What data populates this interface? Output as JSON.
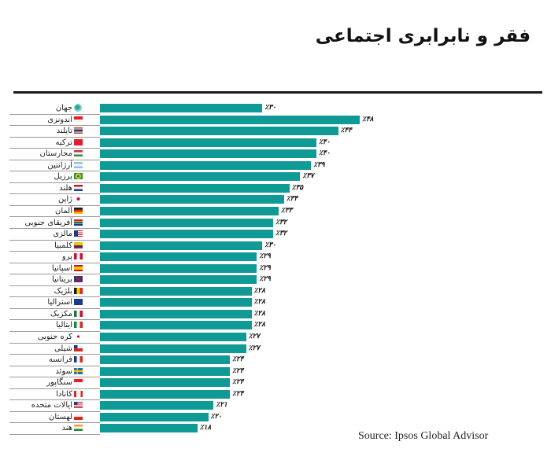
{
  "title": "فقر و نابرابری اجتماعی",
  "source": "Source: Ipsos Global Advisor",
  "colors": {
    "bar": "#0f9a95",
    "rule": "#1a1a1a",
    "separator": "#9a9a9a"
  },
  "chart_data": {
    "type": "bar",
    "orientation": "horizontal",
    "title": "فقر و نابرابری اجتماعی",
    "xlabel": "",
    "ylabel": "",
    "unit": "%",
    "xlim": [
      0,
      50
    ],
    "grid": false,
    "legend": null,
    "source": "Source: Ipsos Global Advisor",
    "categories": [
      "جهان",
      "اندونزی",
      "تایلند",
      "ترکیه",
      "مجارستان",
      "آرژانتین",
      "برزیل",
      "هلند",
      "ژاپن",
      "آلمان",
      "آفریقای جنوبی",
      "مالزی",
      "کلمبیا",
      "پرو",
      "اسپانیا",
      "بریتانیا",
      "بلژیک",
      "استرالیا",
      "مکزیک",
      "ایتالیا",
      "کره جنوبی",
      "شیلی",
      "فرانسه",
      "سوئد",
      "سنگاپور",
      "کانادا",
      "ایالات متحده",
      "لهستان",
      "هند"
    ],
    "values": [
      30,
      48,
      44,
      40,
      40,
      39,
      37,
      35,
      34,
      33,
      32,
      32,
      30,
      29,
      29,
      29,
      28,
      28,
      28,
      28,
      27,
      27,
      24,
      24,
      24,
      24,
      21,
      20,
      18
    ],
    "value_labels": [
      "٪۳۰",
      "٪۴۸",
      "٪۴۴",
      "٪۴۰",
      "٪۴۰",
      "٪۳۹",
      "٪۳۷",
      "٪۳۵",
      "٪۳۴",
      "٪۳۳",
      "٪۳۲",
      "٪۳۲",
      "٪۳۰",
      "٪۲۹",
      "٪۲۹",
      "٪۲۹",
      "٪۲۸",
      "٪۲۸",
      "٪۲۸",
      "٪۲۸",
      "٪۲۷",
      "٪۲۷",
      "٪۲۴",
      "٪۲۴",
      "٪۲۴",
      "٪۲۴",
      "٪۲۱",
      "٪۲۰",
      "٪۱۸"
    ]
  },
  "rows": [
    {
      "label": "جهان",
      "value": 30,
      "value_label": "٪۳۰",
      "icon": "globe-icon",
      "flag": "globe"
    },
    {
      "label": "اندونزی",
      "value": 48,
      "value_label": "٪۴۸",
      "icon": "flag-indonesia-icon",
      "flag": "id"
    },
    {
      "label": "تایلند",
      "value": 44,
      "value_label": "٪۴۴",
      "icon": "flag-thailand-icon",
      "flag": "th"
    },
    {
      "label": "ترکیه",
      "value": 40,
      "value_label": "٪۴۰",
      "icon": "flag-turkey-icon",
      "flag": "tr"
    },
    {
      "label": "مجارستان",
      "value": 40,
      "value_label": "٪۴۰",
      "icon": "flag-hungary-icon",
      "flag": "hu"
    },
    {
      "label": "آرژانتین",
      "value": 39,
      "value_label": "٪۳۹",
      "icon": "flag-argentina-icon",
      "flag": "ar"
    },
    {
      "label": "برزیل",
      "value": 37,
      "value_label": "٪۳۷",
      "icon": "flag-brazil-icon",
      "flag": "br"
    },
    {
      "label": "هلند",
      "value": 35,
      "value_label": "٪۳۵",
      "icon": "flag-netherlands-icon",
      "flag": "nl"
    },
    {
      "label": "ژاپن",
      "value": 34,
      "value_label": "٪۳۴",
      "icon": "flag-japan-icon",
      "flag": "jp"
    },
    {
      "label": "آلمان",
      "value": 33,
      "value_label": "٪۳۳",
      "icon": "flag-germany-icon",
      "flag": "de"
    },
    {
      "label": "آفریقای جنوبی",
      "value": 32,
      "value_label": "٪۳۲",
      "icon": "flag-south-africa-icon",
      "flag": "za"
    },
    {
      "label": "مالزی",
      "value": 32,
      "value_label": "٪۳۲",
      "icon": "flag-malaysia-icon",
      "flag": "my"
    },
    {
      "label": "کلمبیا",
      "value": 30,
      "value_label": "٪۳۰",
      "icon": "flag-colombia-icon",
      "flag": "co"
    },
    {
      "label": "پرو",
      "value": 29,
      "value_label": "٪۲۹",
      "icon": "flag-peru-icon",
      "flag": "pe"
    },
    {
      "label": "اسپانیا",
      "value": 29,
      "value_label": "٪۲۹",
      "icon": "flag-spain-icon",
      "flag": "es"
    },
    {
      "label": "بریتانیا",
      "value": 29,
      "value_label": "٪۲۹",
      "icon": "flag-uk-icon",
      "flag": "gb"
    },
    {
      "label": "بلژیک",
      "value": 28,
      "value_label": "٪۲۸",
      "icon": "flag-belgium-icon",
      "flag": "be"
    },
    {
      "label": "استرالیا",
      "value": 28,
      "value_label": "٪۲۸",
      "icon": "flag-australia-icon",
      "flag": "au"
    },
    {
      "label": "مکزیک",
      "value": 28,
      "value_label": "٪۲۸",
      "icon": "flag-mexico-icon",
      "flag": "mx"
    },
    {
      "label": "ایتالیا",
      "value": 28,
      "value_label": "٪۲۸",
      "icon": "flag-italy-icon",
      "flag": "it"
    },
    {
      "label": "کره جنوبی",
      "value": 27,
      "value_label": "٪۲۷",
      "icon": "flag-south-korea-icon",
      "flag": "kr"
    },
    {
      "label": "شیلی",
      "value": 27,
      "value_label": "٪۲۷",
      "icon": "flag-chile-icon",
      "flag": "cl"
    },
    {
      "label": "فرانسه",
      "value": 24,
      "value_label": "٪۲۴",
      "icon": "flag-france-icon",
      "flag": "fr"
    },
    {
      "label": "سوئد",
      "value": 24,
      "value_label": "٪۲۴",
      "icon": "flag-sweden-icon",
      "flag": "se"
    },
    {
      "label": "سنگاپور",
      "value": 24,
      "value_label": "٪۲۴",
      "icon": "flag-singapore-icon",
      "flag": "sg"
    },
    {
      "label": "کانادا",
      "value": 24,
      "value_label": "٪۲۴",
      "icon": "flag-canada-icon",
      "flag": "ca"
    },
    {
      "label": "ایالات متحده",
      "value": 21,
      "value_label": "٪۲۱",
      "icon": "flag-usa-icon",
      "flag": "us"
    },
    {
      "label": "لهستان",
      "value": 20,
      "value_label": "٪۲۰",
      "icon": "flag-poland-icon",
      "flag": "pl"
    },
    {
      "label": "هند",
      "value": 18,
      "value_label": "٪۱۸",
      "icon": "flag-india-icon",
      "flag": "in"
    }
  ]
}
